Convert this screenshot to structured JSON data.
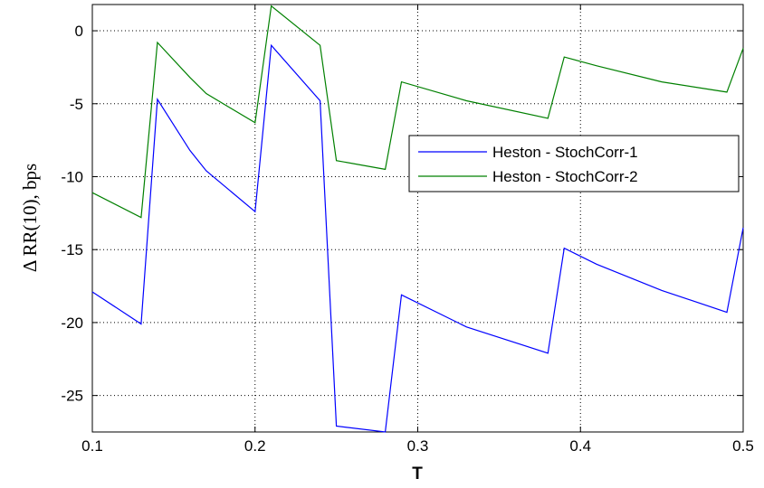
{
  "chart_data": {
    "type": "line",
    "title": "",
    "xlabel": "T",
    "ylabel": "Δ RR(10), bps",
    "xlim": [
      0.1,
      0.5
    ],
    "ylim": [
      -27.5,
      1.8
    ],
    "xticks": [
      0.1,
      0.2,
      0.3,
      0.4,
      0.5
    ],
    "xtick_labels": [
      "0.1",
      "0.2",
      "0.3",
      "0.4",
      "0.5"
    ],
    "yticks": [
      0,
      -5,
      -10,
      -15,
      -20,
      -25
    ],
    "ytick_labels": [
      "0",
      "-5",
      "-10",
      "-15",
      "-20",
      "-25"
    ],
    "grid": true,
    "legend_position": "right",
    "series": [
      {
        "name": "Heston - StochCorr-1",
        "color": "#0000ff",
        "x": [
          0.1,
          0.13,
          0.14,
          0.16,
          0.17,
          0.2,
          0.21,
          0.24,
          0.25,
          0.28,
          0.29,
          0.33,
          0.38,
          0.39,
          0.41,
          0.45,
          0.49,
          0.5
        ],
        "y": [
          -17.9,
          -20.1,
          -4.7,
          -8.2,
          -9.6,
          -12.4,
          -1.0,
          -4.8,
          -27.1,
          -27.5,
          -18.1,
          -20.3,
          -22.1,
          -14.9,
          -16.0,
          -17.8,
          -19.3,
          -13.5
        ]
      },
      {
        "name": "Heston - StochCorr-2",
        "color": "#008000",
        "x": [
          0.1,
          0.13,
          0.14,
          0.16,
          0.17,
          0.2,
          0.21,
          0.24,
          0.25,
          0.28,
          0.29,
          0.33,
          0.38,
          0.39,
          0.41,
          0.45,
          0.49,
          0.5
        ],
        "y": [
          -11.1,
          -12.8,
          -0.8,
          -3.2,
          -4.3,
          -6.3,
          1.7,
          -1.0,
          -8.9,
          -9.5,
          -3.5,
          -4.8,
          -6.0,
          -1.8,
          -2.4,
          -3.5,
          -4.2,
          -1.2
        ]
      }
    ]
  }
}
